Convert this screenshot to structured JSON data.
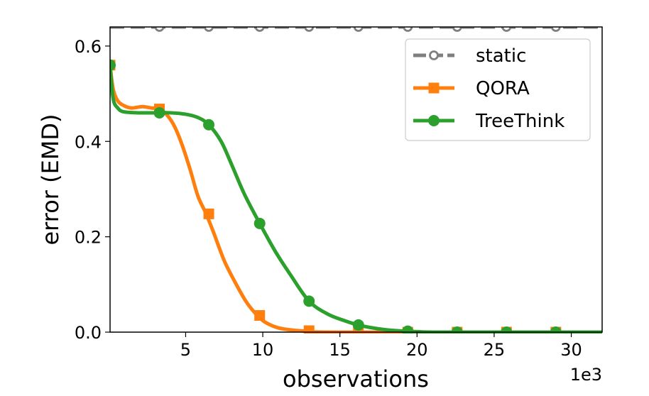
{
  "chart_data": {
    "type": "line",
    "xlabel": "observations",
    "ylabel": "error (EMD)",
    "x_offset_label": "1e3",
    "xlim": [
      0.1,
      32
    ],
    "ylim": [
      0,
      0.64
    ],
    "xticks": [
      5,
      10,
      15,
      20,
      25,
      30
    ],
    "xtick_labels": [
      "5",
      "10",
      "15",
      "20",
      "25",
      "30"
    ],
    "yticks": [
      0.0,
      0.2,
      0.4,
      0.6
    ],
    "ytick_labels": [
      "0.0",
      "0.2",
      "0.4",
      "0.6"
    ],
    "legend_position": "top-right",
    "series": [
      {
        "name": "static",
        "color": "#7f7f7f",
        "marker": "open-circle",
        "linestyle": "dashed",
        "curve": [
          [
            0.1,
            0.64
          ],
          [
            32,
            0.64
          ]
        ],
        "markers": [
          [
            3.3,
            0.64
          ],
          [
            6.5,
            0.64
          ],
          [
            9.8,
            0.64
          ],
          [
            13.0,
            0.64
          ],
          [
            16.2,
            0.64
          ],
          [
            19.4,
            0.64
          ],
          [
            22.6,
            0.64
          ],
          [
            25.8,
            0.64
          ],
          [
            29.0,
            0.64
          ]
        ]
      },
      {
        "name": "QORA",
        "color": "#ff7f0e",
        "marker": "square",
        "linestyle": "solid",
        "curve": [
          [
            0.1,
            0.56
          ],
          [
            0.3,
            0.51
          ],
          [
            0.6,
            0.485
          ],
          [
            1.0,
            0.475
          ],
          [
            1.5,
            0.47
          ],
          [
            2.2,
            0.473
          ],
          [
            2.8,
            0.47
          ],
          [
            3.3,
            0.468
          ],
          [
            3.8,
            0.455
          ],
          [
            4.3,
            0.43
          ],
          [
            4.8,
            0.39
          ],
          [
            5.3,
            0.34
          ],
          [
            5.8,
            0.285
          ],
          [
            6.3,
            0.25
          ],
          [
            6.8,
            0.21
          ],
          [
            7.5,
            0.15
          ],
          [
            8.2,
            0.105
          ],
          [
            8.9,
            0.065
          ],
          [
            9.5,
            0.04
          ],
          [
            10.1,
            0.022
          ],
          [
            11.0,
            0.009
          ],
          [
            12.0,
            0.004
          ],
          [
            13.0,
            0.002
          ],
          [
            15.0,
            0.0
          ],
          [
            32,
            0.0
          ]
        ],
        "markers": [
          [
            0.1,
            0.56
          ],
          [
            3.3,
            0.468
          ],
          [
            6.5,
            0.248
          ],
          [
            9.8,
            0.035
          ],
          [
            13.0,
            0.003
          ],
          [
            16.2,
            0.0
          ],
          [
            19.4,
            0.0
          ],
          [
            22.6,
            0.0
          ],
          [
            25.8,
            0.0
          ],
          [
            29.0,
            0.0
          ]
        ]
      },
      {
        "name": "TreeThink",
        "color": "#2ca02c",
        "marker": "circle",
        "linestyle": "solid",
        "curve": [
          [
            0.1,
            0.56
          ],
          [
            0.3,
            0.49
          ],
          [
            0.6,
            0.47
          ],
          [
            1.0,
            0.462
          ],
          [
            2.0,
            0.46
          ],
          [
            3.0,
            0.46
          ],
          [
            4.0,
            0.46
          ],
          [
            5.0,
            0.457
          ],
          [
            5.8,
            0.45
          ],
          [
            6.5,
            0.435
          ],
          [
            7.3,
            0.4
          ],
          [
            8.0,
            0.35
          ],
          [
            8.8,
            0.29
          ],
          [
            9.8,
            0.228
          ],
          [
            10.8,
            0.17
          ],
          [
            11.8,
            0.12
          ],
          [
            13.0,
            0.065
          ],
          [
            14.2,
            0.038
          ],
          [
            15.3,
            0.024
          ],
          [
            16.3,
            0.014
          ],
          [
            17.5,
            0.007
          ],
          [
            18.7,
            0.003
          ],
          [
            20.0,
            0.001
          ],
          [
            22.0,
            0.0
          ],
          [
            32,
            0.0
          ]
        ],
        "markers": [
          [
            0.1,
            0.56
          ],
          [
            3.3,
            0.46
          ],
          [
            6.5,
            0.435
          ],
          [
            9.8,
            0.228
          ],
          [
            13.0,
            0.065
          ],
          [
            16.2,
            0.015
          ],
          [
            19.4,
            0.002
          ],
          [
            22.6,
            0.0
          ],
          [
            25.8,
            0.0
          ],
          [
            29.0,
            0.0
          ]
        ]
      }
    ]
  }
}
